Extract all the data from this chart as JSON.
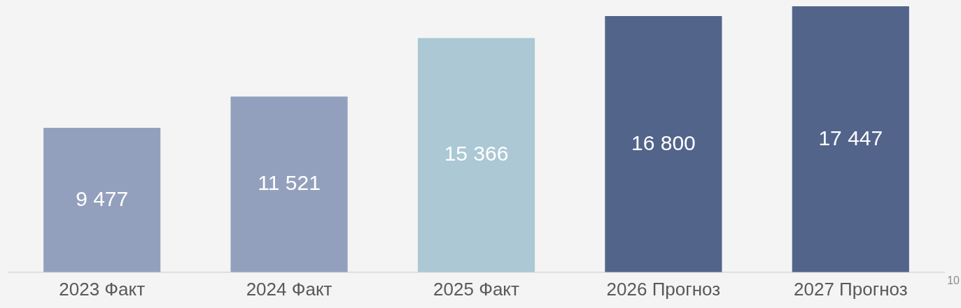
{
  "chart_data": {
    "type": "bar",
    "categories": [
      "2023 Факт",
      "2024 Факт",
      "2025 Факт",
      "2026 Прогноз",
      "2027 Прогноз"
    ],
    "values": [
      9477,
      11521,
      15366,
      16800,
      17447
    ],
    "colors": [
      "#93a0bd",
      "#93a0bd",
      "#abc8d4",
      "#52648a",
      "#52648a"
    ],
    "value_labels": [
      "9 477",
      "11 521",
      "15 366",
      "16 800",
      "17 447"
    ],
    "annotations": [
      "10"
    ],
    "grid": false,
    "legend": false
  }
}
